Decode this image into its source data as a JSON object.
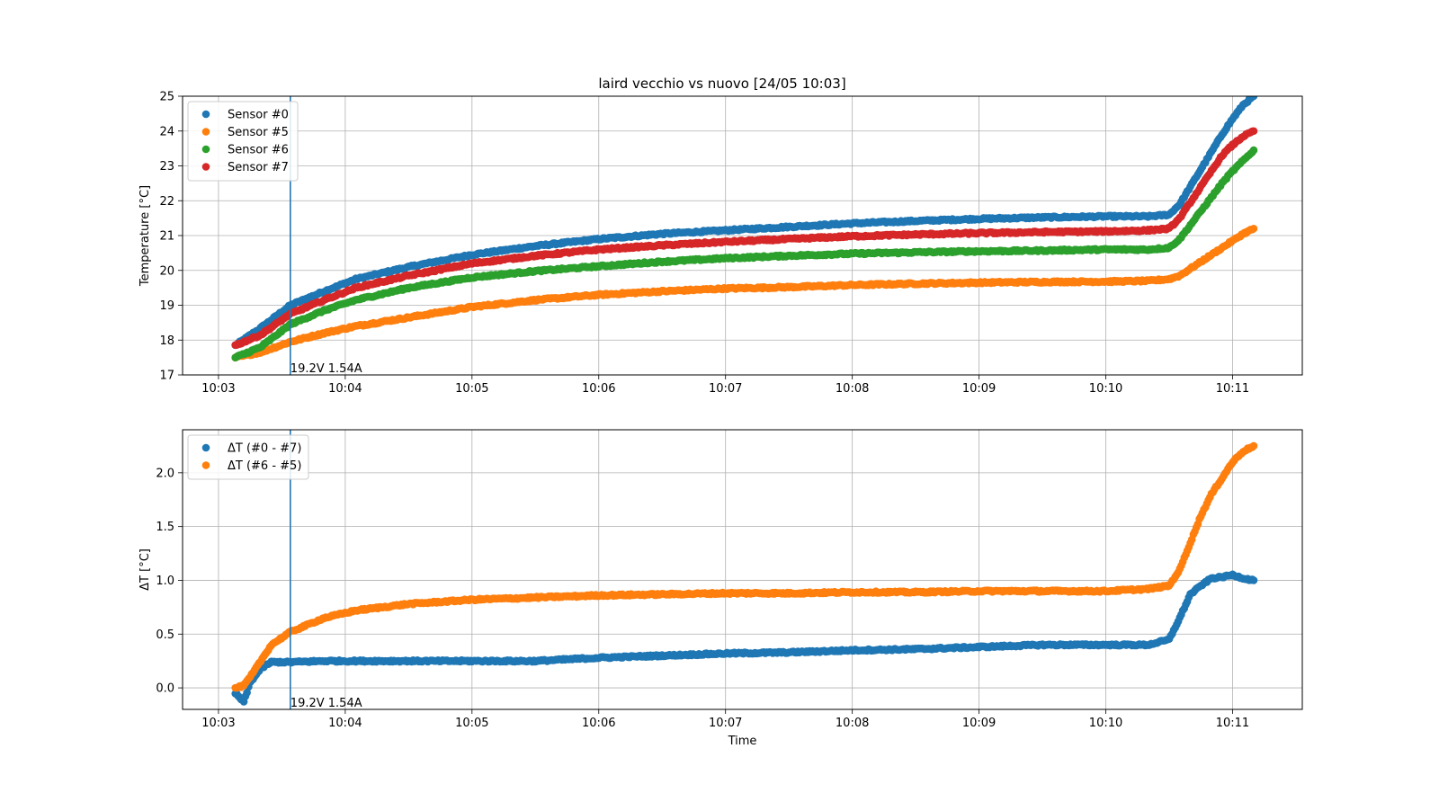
{
  "figure_title": "laird vecchio vs nuovo [24/05 10:03]",
  "chart_data": [
    {
      "type": "scatter",
      "title": "laird vecchio vs nuovo [24/05 10:03]",
      "xlabel": "",
      "ylabel": "Temperature [°C]",
      "xlim": [
        "10:02:43",
        "10:11:33"
      ],
      "ylim": [
        17,
        25
      ],
      "x_ticks": [
        "10:03",
        "10:04",
        "10:05",
        "10:06",
        "10:07",
        "10:08",
        "10:09",
        "10:10",
        "10:11"
      ],
      "y_ticks": [
        17,
        18,
        19,
        20,
        21,
        22,
        23,
        24,
        25
      ],
      "grid": true,
      "legend": "top-left",
      "annotation": {
        "x": "10:03:34",
        "text": "19.2V 1.54A"
      },
      "series": [
        {
          "name": "Sensor #0",
          "color": "#1f77b4",
          "x": [
            "10:03:08",
            "10:03:20",
            "10:03:34",
            "10:03:50",
            "10:04:05",
            "10:04:30",
            "10:05:00",
            "10:05:30",
            "10:06:00",
            "10:06:30",
            "10:07:00",
            "10:07:30",
            "10:08:00",
            "10:08:30",
            "10:09:00",
            "10:09:30",
            "10:10:00",
            "10:10:20",
            "10:10:30",
            "10:10:35",
            "10:10:40",
            "10:10:45",
            "10:10:50",
            "10:10:55",
            "10:11:00",
            "10:11:05",
            "10:11:10"
          ],
          "y": [
            17.85,
            18.35,
            19.0,
            19.4,
            19.75,
            20.1,
            20.45,
            20.7,
            20.9,
            21.05,
            21.15,
            21.25,
            21.35,
            21.42,
            21.48,
            21.52,
            21.55,
            21.55,
            21.6,
            21.9,
            22.4,
            22.9,
            23.4,
            23.9,
            24.35,
            24.75,
            25.0
          ]
        },
        {
          "name": "Sensor #5",
          "color": "#ff7f0e",
          "x": [
            "10:03:08",
            "10:03:20",
            "10:03:34",
            "10:03:50",
            "10:04:05",
            "10:04:30",
            "10:05:00",
            "10:05:30",
            "10:06:00",
            "10:06:30",
            "10:07:00",
            "10:07:30",
            "10:08:00",
            "10:08:30",
            "10:09:00",
            "10:09:30",
            "10:10:00",
            "10:10:20",
            "10:10:30",
            "10:10:35",
            "10:10:40",
            "10:10:45",
            "10:10:50",
            "10:10:55",
            "10:11:00",
            "10:11:05",
            "10:11:10"
          ],
          "y": [
            17.5,
            17.65,
            17.95,
            18.2,
            18.4,
            18.65,
            18.95,
            19.15,
            19.3,
            19.4,
            19.48,
            19.52,
            19.58,
            19.62,
            19.65,
            19.67,
            19.68,
            19.7,
            19.75,
            19.85,
            20.05,
            20.25,
            20.45,
            20.65,
            20.85,
            21.05,
            21.2
          ]
        },
        {
          "name": "Sensor #6",
          "color": "#2ca02c",
          "x": [
            "10:03:08",
            "10:03:20",
            "10:03:34",
            "10:03:50",
            "10:04:05",
            "10:04:30",
            "10:05:00",
            "10:05:30",
            "10:06:00",
            "10:06:30",
            "10:07:00",
            "10:07:30",
            "10:08:00",
            "10:08:30",
            "10:09:00",
            "10:09:30",
            "10:10:00",
            "10:10:20",
            "10:10:30",
            "10:10:35",
            "10:10:40",
            "10:10:45",
            "10:10:50",
            "10:10:55",
            "10:11:00",
            "10:11:05",
            "10:11:10"
          ],
          "y": [
            17.5,
            17.8,
            18.45,
            18.85,
            19.15,
            19.5,
            19.8,
            19.98,
            20.12,
            20.25,
            20.35,
            20.42,
            20.48,
            20.52,
            20.55,
            20.57,
            20.6,
            20.6,
            20.65,
            20.9,
            21.3,
            21.7,
            22.1,
            22.5,
            22.85,
            23.15,
            23.45
          ]
        },
        {
          "name": "Sensor #7",
          "color": "#d62728",
          "x": [
            "10:03:08",
            "10:03:20",
            "10:03:34",
            "10:03:50",
            "10:04:05",
            "10:04:30",
            "10:05:00",
            "10:05:30",
            "10:06:00",
            "10:06:30",
            "10:07:00",
            "10:07:30",
            "10:08:00",
            "10:08:30",
            "10:09:00",
            "10:09:30",
            "10:10:00",
            "10:10:20",
            "10:10:30",
            "10:10:35",
            "10:10:40",
            "10:10:45",
            "10:10:50",
            "10:10:55",
            "10:11:00",
            "10:11:05",
            "10:11:10"
          ],
          "y": [
            17.85,
            18.15,
            18.75,
            19.15,
            19.5,
            19.85,
            20.2,
            20.42,
            20.6,
            20.72,
            20.82,
            20.9,
            20.98,
            21.03,
            21.07,
            21.1,
            21.12,
            21.15,
            21.2,
            21.5,
            21.95,
            22.4,
            22.85,
            23.3,
            23.6,
            23.85,
            24.0
          ]
        }
      ]
    },
    {
      "type": "scatter",
      "title": "",
      "xlabel": "Time",
      "ylabel": "ΔT [°C]",
      "xlim": [
        "10:02:43",
        "10:11:33"
      ],
      "ylim": [
        -0.2,
        2.4
      ],
      "x_ticks": [
        "10:03",
        "10:04",
        "10:05",
        "10:06",
        "10:07",
        "10:08",
        "10:09",
        "10:10",
        "10:11"
      ],
      "y_ticks": [
        "0.0",
        "0.5",
        "1.0",
        "1.5",
        "2.0"
      ],
      "grid": true,
      "legend": "top-left",
      "annotation": {
        "x": "10:03:34",
        "text": "19.2V 1.54A"
      },
      "series": [
        {
          "name": "ΔT (#0 - #7)",
          "color": "#1f77b4",
          "x": [
            "10:03:08",
            "10:03:12",
            "10:03:15",
            "10:03:20",
            "10:03:25",
            "10:03:34",
            "10:03:50",
            "10:04:05",
            "10:04:30",
            "10:05:00",
            "10:05:30",
            "10:06:00",
            "10:06:30",
            "10:07:00",
            "10:07:30",
            "10:08:00",
            "10:08:30",
            "10:09:00",
            "10:09:30",
            "10:10:00",
            "10:10:20",
            "10:10:30",
            "10:10:35",
            "10:10:40",
            "10:10:45",
            "10:10:50",
            "10:10:55",
            "10:11:00",
            "10:11:05",
            "10:11:10"
          ],
          "y": [
            -0.05,
            -0.13,
            0.05,
            0.18,
            0.24,
            0.24,
            0.25,
            0.25,
            0.25,
            0.25,
            0.25,
            0.28,
            0.3,
            0.32,
            0.33,
            0.35,
            0.36,
            0.38,
            0.4,
            0.4,
            0.4,
            0.45,
            0.65,
            0.87,
            0.95,
            1.02,
            1.03,
            1.05,
            1.02,
            1.0
          ]
        },
        {
          "name": "ΔT (#6 - #5)",
          "color": "#ff7f0e",
          "x": [
            "10:03:08",
            "10:03:12",
            "10:03:15",
            "10:03:20",
            "10:03:25",
            "10:03:34",
            "10:03:50",
            "10:04:05",
            "10:04:30",
            "10:05:00",
            "10:05:30",
            "10:06:00",
            "10:06:30",
            "10:07:00",
            "10:07:30",
            "10:08:00",
            "10:08:30",
            "10:09:00",
            "10:09:30",
            "10:10:00",
            "10:10:20",
            "10:10:30",
            "10:10:35",
            "10:10:40",
            "10:10:45",
            "10:10:50",
            "10:10:55",
            "10:11:00",
            "10:11:05",
            "10:11:10"
          ],
          "y": [
            0.0,
            0.02,
            0.1,
            0.25,
            0.4,
            0.52,
            0.65,
            0.72,
            0.78,
            0.82,
            0.84,
            0.86,
            0.87,
            0.88,
            0.88,
            0.89,
            0.89,
            0.9,
            0.9,
            0.9,
            0.92,
            0.95,
            1.1,
            1.35,
            1.6,
            1.8,
            1.95,
            2.1,
            2.2,
            2.25
          ]
        }
      ]
    }
  ]
}
